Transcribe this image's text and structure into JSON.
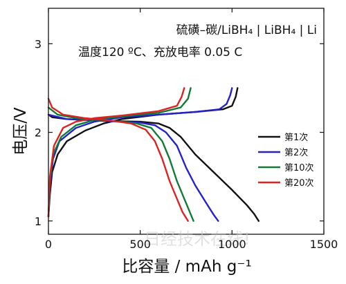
{
  "chart_data": {
    "type": "line",
    "annotation_line1": "硫磺–碳/LiBH₄ | LiBH₄ | Li",
    "annotation_line2": "温度120 ºC、充放电率 0.05 C",
    "xlabel": "比容量 / mAh g⁻¹",
    "ylabel": "电压/V",
    "xlim": [
      0,
      1500
    ],
    "ylim": [
      0.85,
      3.4
    ],
    "x_ticks": [
      0,
      500,
      1000,
      1500
    ],
    "y_ticks": [
      1,
      2,
      3
    ],
    "grid": false,
    "legend_position": "right",
    "series": [
      {
        "name": "第1次",
        "color": "#111111",
        "discharge": [
          [
            0,
            2.2
          ],
          [
            20,
            2.17
          ],
          [
            100,
            2.15
          ],
          [
            300,
            2.13
          ],
          [
            500,
            2.12
          ],
          [
            600,
            2.1
          ],
          [
            660,
            2.05
          ],
          [
            720,
            1.95
          ],
          [
            800,
            1.75
          ],
          [
            900,
            1.55
          ],
          [
            1000,
            1.35
          ],
          [
            1080,
            1.18
          ],
          [
            1120,
            1.08
          ],
          [
            1145,
            1.0
          ]
        ],
        "charge": [
          [
            0,
            1.05
          ],
          [
            8,
            1.3
          ],
          [
            20,
            1.55
          ],
          [
            50,
            1.75
          ],
          [
            100,
            1.9
          ],
          [
            200,
            2.02
          ],
          [
            300,
            2.1
          ],
          [
            400,
            2.15
          ],
          [
            600,
            2.2
          ],
          [
            800,
            2.23
          ],
          [
            950,
            2.26
          ],
          [
            1000,
            2.3
          ],
          [
            1020,
            2.4
          ],
          [
            1030,
            2.5
          ]
        ]
      },
      {
        "name": "第2次",
        "color": "#2222cc",
        "discharge": [
          [
            0,
            2.2
          ],
          [
            100,
            2.15
          ],
          [
            300,
            2.13
          ],
          [
            500,
            2.11
          ],
          [
            580,
            2.08
          ],
          [
            640,
            2.0
          ],
          [
            700,
            1.85
          ],
          [
            750,
            1.6
          ],
          [
            800,
            1.4
          ],
          [
            860,
            1.2
          ],
          [
            900,
            1.07
          ],
          [
            925,
            1.0
          ]
        ],
        "charge": [
          [
            0,
            1.05
          ],
          [
            8,
            1.4
          ],
          [
            25,
            1.7
          ],
          [
            60,
            1.9
          ],
          [
            150,
            2.05
          ],
          [
            250,
            2.12
          ],
          [
            400,
            2.17
          ],
          [
            600,
            2.2
          ],
          [
            800,
            2.23
          ],
          [
            930,
            2.26
          ],
          [
            970,
            2.32
          ],
          [
            990,
            2.42
          ],
          [
            1000,
            2.5
          ]
        ]
      },
      {
        "name": "第10次",
        "color": "#117a33",
        "discharge": [
          [
            0,
            2.28
          ],
          [
            50,
            2.2
          ],
          [
            150,
            2.16
          ],
          [
            350,
            2.13
          ],
          [
            480,
            2.1
          ],
          [
            560,
            2.05
          ],
          [
            620,
            1.9
          ],
          [
            660,
            1.7
          ],
          [
            700,
            1.45
          ],
          [
            740,
            1.25
          ],
          [
            770,
            1.1
          ],
          [
            790,
            1.0
          ]
        ],
        "charge": [
          [
            0,
            1.05
          ],
          [
            8,
            1.45
          ],
          [
            25,
            1.75
          ],
          [
            70,
            1.95
          ],
          [
            150,
            2.08
          ],
          [
            250,
            2.14
          ],
          [
            400,
            2.18
          ],
          [
            600,
            2.22
          ],
          [
            720,
            2.28
          ],
          [
            760,
            2.38
          ],
          [
            775,
            2.5
          ]
        ]
      },
      {
        "name": "第20次",
        "color": "#dd2222",
        "discharge": [
          [
            0,
            2.38
          ],
          [
            20,
            2.28
          ],
          [
            80,
            2.2
          ],
          [
            200,
            2.16
          ],
          [
            350,
            2.13
          ],
          [
            450,
            2.1
          ],
          [
            530,
            2.03
          ],
          [
            580,
            1.9
          ],
          [
            620,
            1.7
          ],
          [
            660,
            1.45
          ],
          [
            700,
            1.25
          ],
          [
            730,
            1.1
          ],
          [
            760,
            1.0
          ]
        ],
        "charge": [
          [
            0,
            1.05
          ],
          [
            8,
            1.5
          ],
          [
            30,
            1.85
          ],
          [
            80,
            2.05
          ],
          [
            150,
            2.12
          ],
          [
            250,
            2.16
          ],
          [
            400,
            2.19
          ],
          [
            600,
            2.24
          ],
          [
            700,
            2.3
          ],
          [
            725,
            2.4
          ],
          [
            740,
            2.5
          ]
        ]
      }
    ]
  },
  "watermark": "日经技术在线!"
}
